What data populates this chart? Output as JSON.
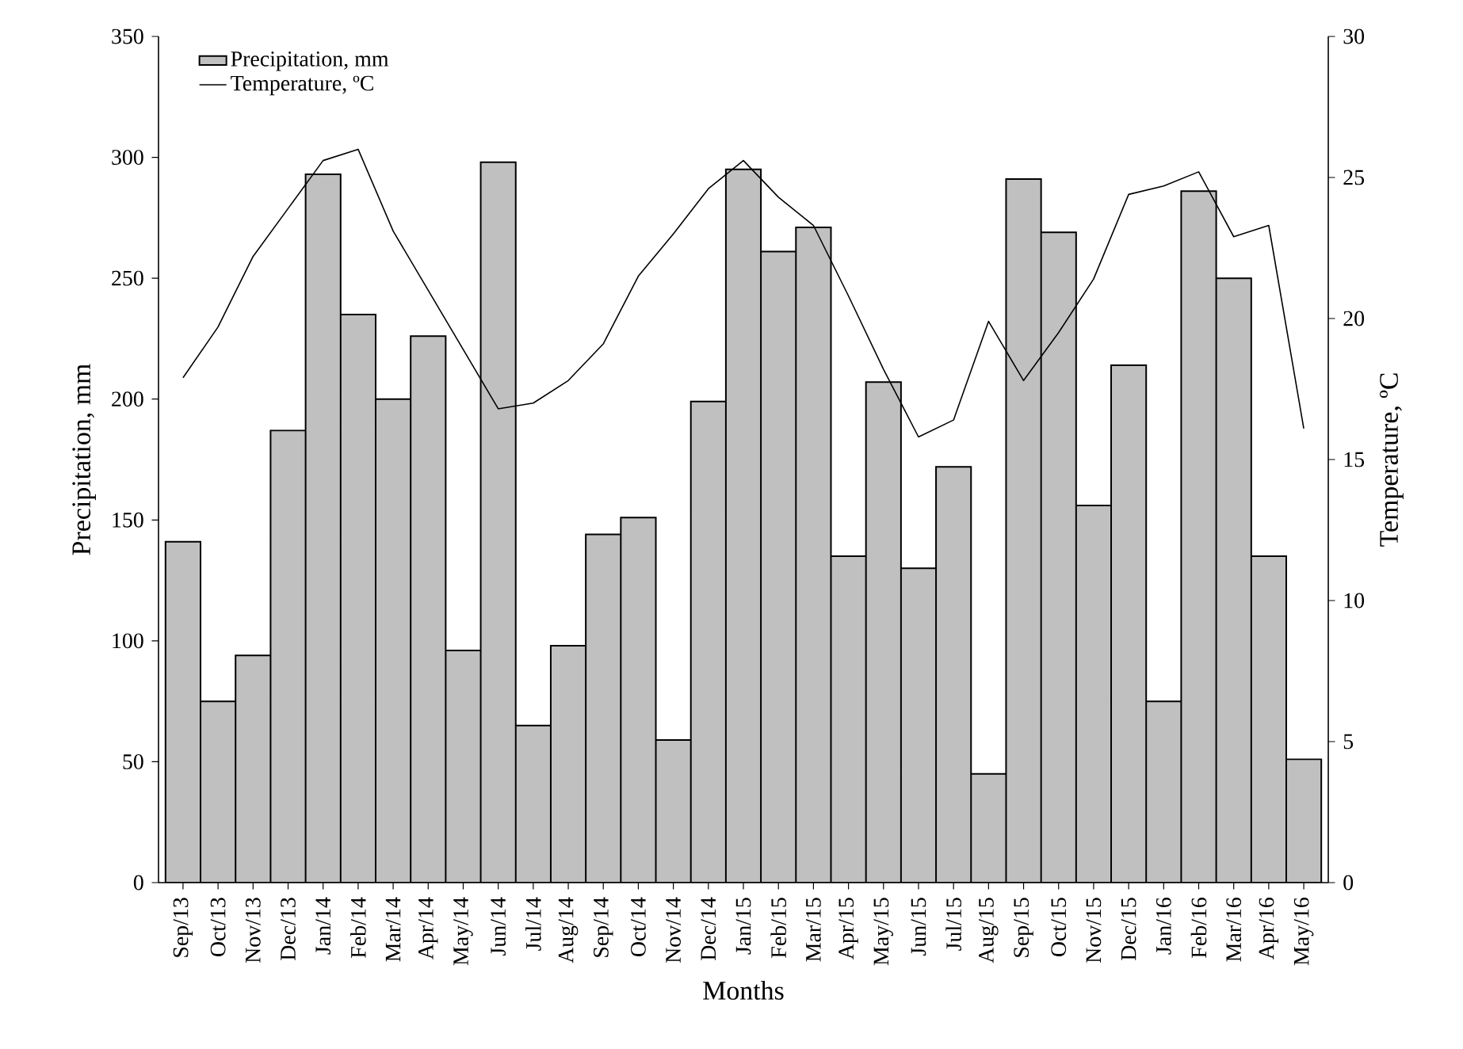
{
  "chart_data": {
    "type": "bar",
    "xlabel": "Months",
    "ylabel": "Precipitation, mm",
    "y2label": "Temperature, ºC",
    "categories": [
      "Sep/13",
      "Oct/13",
      "Nov/13",
      "Dec/13",
      "Jan/14",
      "Feb/14",
      "Mar/14",
      "Apr/14",
      "May/14",
      "Jun/14",
      "Jul/14",
      "Aug/14",
      "Sep/14",
      "Oct/14",
      "Nov/14",
      "Dec/14",
      "Jan/15",
      "Feb/15",
      "Mar/15",
      "Apr/15",
      "May/15",
      "Jun/15",
      "Jul/15",
      "Aug/15",
      "Sep/15",
      "Oct/15",
      "Nov/15",
      "Dec/15",
      "Jan/16",
      "Feb/16",
      "Mar/16",
      "Apr/16",
      "May/16"
    ],
    "series": [
      {
        "name": "Precipitation, mm",
        "color": "#c0c0c0",
        "values": [
          141,
          75,
          94,
          187,
          293,
          235,
          200,
          226,
          96,
          298,
          65,
          98,
          144,
          151,
          59,
          199,
          295,
          261,
          271,
          135,
          207,
          130,
          172,
          45,
          291,
          269,
          156,
          214,
          75,
          286,
          250,
          135,
          51
        ]
      },
      {
        "name": "Temperature, ºC",
        "type": "line",
        "axis": "y2",
        "color": "#000000",
        "values": [
          17.9,
          19.7,
          22.2,
          23.9,
          25.6,
          26.0,
          23.1,
          21.0,
          18.9,
          16.8,
          17.0,
          17.8,
          19.1,
          21.5,
          23.0,
          24.6,
          25.6,
          24.3,
          23.3,
          20.8,
          18.2,
          15.8,
          16.4,
          19.9,
          17.8,
          19.5,
          21.4,
          24.4,
          24.7,
          25.2,
          22.9,
          23.3,
          16.1
        ]
      }
    ],
    "ylim": [
      0,
      350
    ],
    "yticks": [
      0,
      50,
      100,
      150,
      200,
      250,
      300,
      350
    ],
    "y2lim": [
      0,
      30
    ],
    "y2ticks": [
      0,
      5,
      10,
      15,
      20,
      25,
      30
    ],
    "legend": "top left"
  }
}
